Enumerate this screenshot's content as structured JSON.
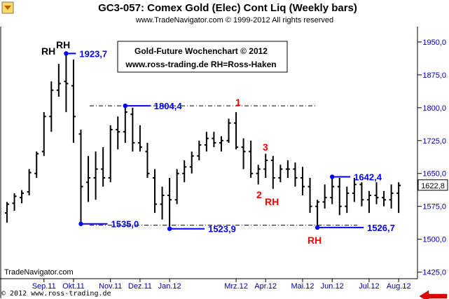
{
  "chart_data": {
    "type": "ohlc",
    "title": "GC3-057:  Comex Gold (Elec) Cont Liq  (Weekly bars)",
    "subtitle": "www.TradeNavigator.com © 1999-2012 All rights reserved",
    "info_box": [
      "Gold-Future Wochenchart © 2012",
      "www.ross-trading.de  RH=Ross-Haken"
    ],
    "ylim": [
      1410,
      1985
    ],
    "y_ticks": [
      {
        "value": 1950,
        "label": "1950,0"
      },
      {
        "value": 1875,
        "label": "1875,0"
      },
      {
        "value": 1800,
        "label": "1800,0"
      },
      {
        "value": 1725,
        "label": "1725,0"
      },
      {
        "value": 1650,
        "label": "1650,0"
      },
      {
        "value": 1575,
        "label": "1575,0"
      },
      {
        "value": 1500,
        "label": "1500,0"
      },
      {
        "value": 1425,
        "label": "1425,0"
      }
    ],
    "last_price": {
      "value": 1622.8,
      "label": "1622,8"
    },
    "x_ticks": [
      {
        "index": 5,
        "label": "Sep.11"
      },
      {
        "index": 9,
        "label": "Okt.11"
      },
      {
        "index": 14,
        "label": "Nov.11"
      },
      {
        "index": 18,
        "label": "Dez.11"
      },
      {
        "index": 22,
        "label": "Jan.12"
      },
      {
        "index": 31,
        "label": "Mrz.12"
      },
      {
        "index": 35,
        "label": "Apr.12"
      },
      {
        "index": 40,
        "label": "Mai.12"
      },
      {
        "index": 44,
        "label": "Jun.12"
      },
      {
        "index": 49,
        "label": "Jul.12"
      },
      {
        "index": 53,
        "label": "Aug.12"
      }
    ],
    "bars": [
      {
        "o": 1560,
        "h": 1585,
        "l": 1538,
        "c": 1580
      },
      {
        "o": 1582,
        "h": 1605,
        "l": 1565,
        "c": 1598
      },
      {
        "o": 1595,
        "h": 1612,
        "l": 1582,
        "c": 1605
      },
      {
        "o": 1608,
        "h": 1660,
        "l": 1600,
        "c": 1652
      },
      {
        "o": 1650,
        "h": 1700,
        "l": 1640,
        "c": 1695
      },
      {
        "o": 1700,
        "h": 1790,
        "l": 1690,
        "c": 1780
      },
      {
        "o": 1780,
        "h": 1860,
        "l": 1745,
        "c": 1840
      },
      {
        "o": 1840,
        "h": 1900,
        "l": 1825,
        "c": 1855
      },
      {
        "o": 1860,
        "h": 1923.7,
        "l": 1790,
        "c": 1855
      },
      {
        "o": 1850,
        "h": 1910,
        "l": 1720,
        "c": 1780
      },
      {
        "o": 1740,
        "h": 1750,
        "l": 1535,
        "c": 1620
      },
      {
        "o": 1630,
        "h": 1690,
        "l": 1585,
        "c": 1640
      },
      {
        "o": 1640,
        "h": 1700,
        "l": 1590,
        "c": 1660
      },
      {
        "o": 1660,
        "h": 1710,
        "l": 1620,
        "c": 1640
      },
      {
        "o": 1640,
        "h": 1760,
        "l": 1630,
        "c": 1750
      },
      {
        "o": 1750,
        "h": 1780,
        "l": 1705,
        "c": 1745
      },
      {
        "o": 1745,
        "h": 1804.4,
        "l": 1720,
        "c": 1790
      },
      {
        "o": 1785,
        "h": 1800,
        "l": 1700,
        "c": 1720
      },
      {
        "o": 1720,
        "h": 1760,
        "l": 1700,
        "c": 1710
      },
      {
        "o": 1700,
        "h": 1720,
        "l": 1640,
        "c": 1650
      },
      {
        "o": 1640,
        "h": 1660,
        "l": 1560,
        "c": 1580
      },
      {
        "o": 1580,
        "h": 1620,
        "l": 1545,
        "c": 1600
      },
      {
        "o": 1600,
        "h": 1640,
        "l": 1523.9,
        "c": 1590
      },
      {
        "o": 1590,
        "h": 1660,
        "l": 1580,
        "c": 1650
      },
      {
        "o": 1650,
        "h": 1680,
        "l": 1630,
        "c": 1665
      },
      {
        "o": 1665,
        "h": 1700,
        "l": 1650,
        "c": 1690
      },
      {
        "o": 1690,
        "h": 1725,
        "l": 1680,
        "c": 1715
      },
      {
        "o": 1715,
        "h": 1745,
        "l": 1700,
        "c": 1730
      },
      {
        "o": 1730,
        "h": 1745,
        "l": 1710,
        "c": 1720
      },
      {
        "o": 1720,
        "h": 1735,
        "l": 1700,
        "c": 1725
      },
      {
        "o": 1725,
        "h": 1775,
        "l": 1720,
        "c": 1765
      },
      {
        "o": 1765,
        "h": 1790,
        "l": 1705,
        "c": 1710
      },
      {
        "o": 1710,
        "h": 1730,
        "l": 1660,
        "c": 1700
      },
      {
        "o": 1700,
        "h": 1725,
        "l": 1640,
        "c": 1650
      },
      {
        "o": 1650,
        "h": 1670,
        "l": 1625,
        "c": 1660
      },
      {
        "o": 1660,
        "h": 1695,
        "l": 1640,
        "c": 1680
      },
      {
        "o": 1680,
        "h": 1690,
        "l": 1615,
        "c": 1640
      },
      {
        "o": 1640,
        "h": 1670,
        "l": 1630,
        "c": 1660
      },
      {
        "o": 1660,
        "h": 1680,
        "l": 1640,
        "c": 1660
      },
      {
        "o": 1660,
        "h": 1675,
        "l": 1620,
        "c": 1640
      },
      {
        "o": 1640,
        "h": 1665,
        "l": 1600,
        "c": 1620
      },
      {
        "o": 1620,
        "h": 1640,
        "l": 1560,
        "c": 1575
      },
      {
        "o": 1575,
        "h": 1590,
        "l": 1526.7,
        "c": 1585
      },
      {
        "o": 1585,
        "h": 1625,
        "l": 1570,
        "c": 1595
      },
      {
        "o": 1595,
        "h": 1642.4,
        "l": 1580,
        "c": 1620
      },
      {
        "o": 1620,
        "h": 1640,
        "l": 1555,
        "c": 1575
      },
      {
        "o": 1575,
        "h": 1620,
        "l": 1560,
        "c": 1605
      },
      {
        "o": 1605,
        "h": 1640,
        "l": 1585,
        "c": 1625
      },
      {
        "o": 1625,
        "h": 1630,
        "l": 1575,
        "c": 1590
      },
      {
        "o": 1590,
        "h": 1610,
        "l": 1560,
        "c": 1600
      },
      {
        "o": 1600,
        "h": 1630,
        "l": 1580,
        "c": 1595
      },
      {
        "o": 1595,
        "h": 1610,
        "l": 1575,
        "c": 1590
      },
      {
        "o": 1590,
        "h": 1625,
        "l": 1570,
        "c": 1605
      },
      {
        "o": 1605,
        "h": 1630,
        "l": 1560,
        "c": 1622.8
      }
    ],
    "levels": [
      {
        "index": 8,
        "value": 1923.7,
        "label": "1923,7"
      },
      {
        "index": 16,
        "value": 1804.4,
        "label": "1804,4"
      },
      {
        "index": 10,
        "value": 1535,
        "label": "1535,0"
      },
      {
        "index": 22,
        "value": 1523.9,
        "label": "1523,9"
      },
      {
        "index": 42,
        "value": 1526.7,
        "label": "1526,7"
      },
      {
        "index": 44,
        "value": 1642.4,
        "label": "1642,4"
      }
    ],
    "annotations": [
      "RH",
      "RH",
      "1",
      "3",
      "2",
      "RH",
      "RH"
    ],
    "colors": {
      "bars": "#000000",
      "levels": "#0000ff",
      "annotations_red": "#ff0000",
      "grid": "#000000",
      "arrow": "#e00000"
    },
    "grid": false
  },
  "footer": {
    "navigator": "TradeNavigator.com",
    "copyright": "© 2012  www.ross-trading.de"
  },
  "icons": {
    "top_left": "gc-weekly-icon",
    "bottom_right": "next-period-arrow-icon"
  }
}
